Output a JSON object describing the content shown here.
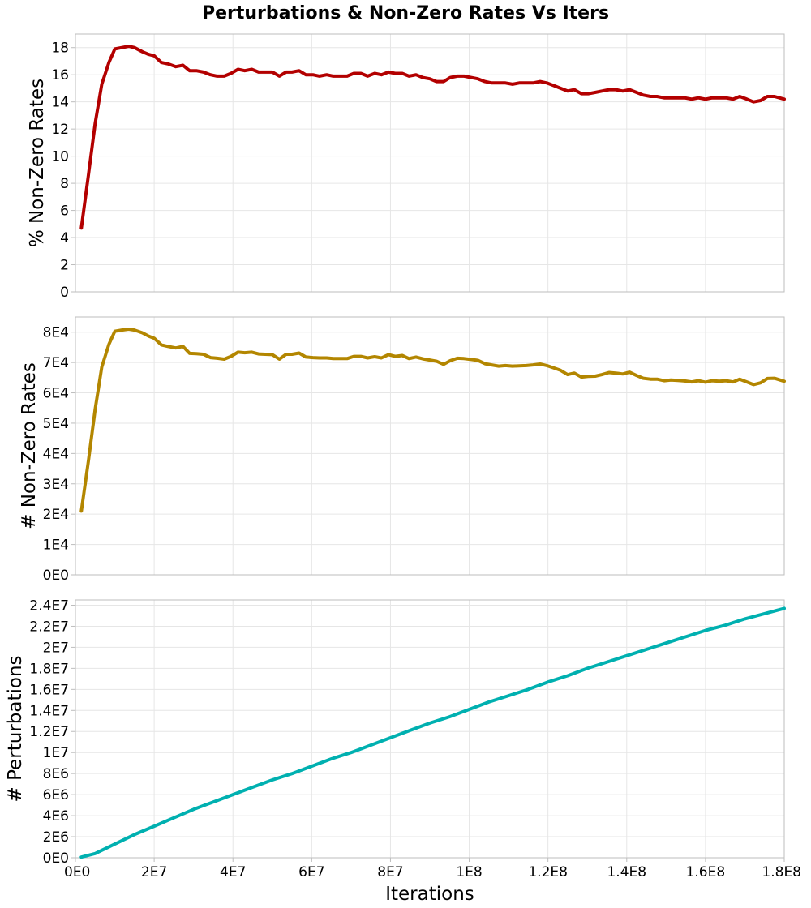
{
  "chart_data": [
    {
      "type": "line",
      "title": "Perturbations & Non-Zero Rates Vs Iters",
      "xlabel": "",
      "ylabel": "% Non-Zero Rates",
      "xlim": [
        0,
        180000000
      ],
      "ylim": [
        0,
        19
      ],
      "yticks": [
        0,
        2,
        4,
        6,
        8,
        10,
        12,
        14,
        16,
        18
      ],
      "ytick_labels": [
        "0",
        "2",
        "4",
        "6",
        "8",
        "10",
        "12",
        "14",
        "16",
        "18"
      ],
      "grid": true,
      "color": "#b30000",
      "series": [
        {
          "x": [
            1500000,
            3300000,
            5000000,
            6700000,
            8500000,
            10000000,
            11800000,
            13500000,
            15000000,
            17000000,
            18600000,
            20000000,
            21800000,
            23500000,
            25500000,
            27300000,
            29000000,
            30700000,
            32500000,
            34300000,
            36000000,
            37800000,
            39500000,
            41300000,
            43000000,
            44800000,
            46500000,
            48200000,
            50000000,
            51800000,
            53500000,
            55000000,
            56800000,
            58500000,
            60300000,
            62000000,
            63800000,
            65500000,
            67200000,
            69000000,
            70700000,
            72500000,
            74200000,
            76000000,
            77700000,
            79500000,
            81200000,
            83000000,
            84700000,
            86500000,
            88200000,
            90000000,
            91700000,
            93500000,
            95200000,
            97000000,
            98700000,
            100500000,
            102200000,
            104000000,
            105700000,
            107500000,
            109200000,
            111000000,
            112700000,
            114500000,
            116200000,
            118000000,
            119700000,
            121500000,
            123200000,
            125000000,
            126700000,
            128500000,
            130200000,
            132000000,
            133700000,
            135500000,
            137200000,
            139000000,
            140700000,
            142500000,
            144200000,
            146000000,
            147700000,
            149500000,
            151200000,
            153000000,
            154700000,
            156500000,
            158200000,
            160000000,
            161700000,
            163500000,
            165200000,
            167000000,
            168700000,
            170500000,
            172200000,
            174000000,
            175700000,
            177500000,
            180000000
          ],
          "y": [
            4.7,
            8.6,
            12.4,
            15.3,
            16.9,
            17.9,
            18.0,
            18.1,
            18.0,
            17.7,
            17.5,
            17.4,
            16.9,
            16.8,
            16.6,
            16.7,
            16.3,
            16.3,
            16.2,
            16.0,
            15.9,
            15.9,
            16.1,
            16.4,
            16.3,
            16.4,
            16.2,
            16.2,
            16.2,
            15.9,
            16.2,
            16.2,
            16.3,
            16.0,
            16.0,
            15.9,
            16.0,
            15.9,
            15.9,
            15.9,
            16.1,
            16.1,
            15.9,
            16.1,
            16.0,
            16.2,
            16.1,
            16.1,
            15.9,
            16.0,
            15.8,
            15.7,
            15.5,
            15.5,
            15.8,
            15.9,
            15.9,
            15.8,
            15.7,
            15.5,
            15.4,
            15.4,
            15.4,
            15.3,
            15.4,
            15.4,
            15.4,
            15.5,
            15.4,
            15.2,
            15.0,
            14.8,
            14.9,
            14.6,
            14.6,
            14.7,
            14.8,
            14.9,
            14.9,
            14.8,
            14.9,
            14.7,
            14.5,
            14.4,
            14.4,
            14.3,
            14.3,
            14.3,
            14.3,
            14.2,
            14.3,
            14.2,
            14.3,
            14.3,
            14.3,
            14.2,
            14.4,
            14.2,
            14.0,
            14.1,
            14.4,
            14.4,
            14.2
          ]
        }
      ]
    },
    {
      "type": "line",
      "xlabel": "",
      "ylabel": "# Non-Zero Rates",
      "xlim": [
        0,
        180000000
      ],
      "ylim": [
        0,
        85000
      ],
      "yticks": [
        0,
        10000,
        20000,
        30000,
        40000,
        50000,
        60000,
        70000,
        80000
      ],
      "ytick_labels": [
        "0E0",
        "1E4",
        "2E4",
        "3E4",
        "4E4",
        "5E4",
        "6E4",
        "7E4",
        "8E4"
      ],
      "grid": true,
      "color": "#b38600",
      "series": [
        {
          "x": [
            1500000,
            3300000,
            5000000,
            6700000,
            8500000,
            10000000,
            11800000,
            13500000,
            15000000,
            17000000,
            18600000,
            20000000,
            21800000,
            23500000,
            25500000,
            27300000,
            29000000,
            30700000,
            32500000,
            34300000,
            36000000,
            37800000,
            39500000,
            41300000,
            43000000,
            44800000,
            46500000,
            48200000,
            50000000,
            51800000,
            53500000,
            55000000,
            56800000,
            58500000,
            60300000,
            62000000,
            63800000,
            65500000,
            67200000,
            69000000,
            70700000,
            72500000,
            74200000,
            76000000,
            77700000,
            79500000,
            81200000,
            83000000,
            84700000,
            86500000,
            88200000,
            90000000,
            91700000,
            93500000,
            95200000,
            97000000,
            98700000,
            100500000,
            102200000,
            104000000,
            105700000,
            107500000,
            109200000,
            111000000,
            112700000,
            114500000,
            116200000,
            118000000,
            119700000,
            121500000,
            123200000,
            125000000,
            126700000,
            128500000,
            130200000,
            132000000,
            133700000,
            135500000,
            137200000,
            139000000,
            140700000,
            142500000,
            144200000,
            146000000,
            147700000,
            149500000,
            151200000,
            153000000,
            154700000,
            156500000,
            158200000,
            160000000,
            161700000,
            163500000,
            165200000,
            167000000,
            168700000,
            170500000,
            172200000,
            174000000,
            175700000,
            177500000,
            180000000
          ],
          "y": [
            21000,
            37500,
            54500,
            68500,
            76000,
            80300,
            80700,
            81000,
            80700,
            79800,
            78700,
            78000,
            75800,
            75300,
            74800,
            75300,
            73000,
            72900,
            72700,
            71600,
            71400,
            71100,
            72000,
            73400,
            73200,
            73400,
            72800,
            72700,
            72600,
            71100,
            72700,
            72700,
            73100,
            71800,
            71600,
            71500,
            71500,
            71300,
            71300,
            71300,
            72000,
            72000,
            71500,
            71900,
            71500,
            72600,
            72000,
            72300,
            71300,
            71800,
            71200,
            70800,
            70400,
            69400,
            70600,
            71400,
            71300,
            71000,
            70700,
            69600,
            69200,
            68800,
            69000,
            68800,
            68900,
            69000,
            69200,
            69500,
            69000,
            68200,
            67400,
            66000,
            66500,
            65200,
            65400,
            65500,
            66000,
            66700,
            66500,
            66200,
            66800,
            65700,
            64800,
            64500,
            64500,
            64000,
            64200,
            64100,
            63900,
            63600,
            64000,
            63500,
            64000,
            63800,
            64000,
            63600,
            64500,
            63600,
            62700,
            63300,
            64700,
            64800,
            63800
          ]
        }
      ]
    },
    {
      "type": "line",
      "xlabel": "Iterations",
      "ylabel": "# Perturbations",
      "xlim": [
        0,
        180000000
      ],
      "ylim": [
        0,
        24500000
      ],
      "xticks": [
        0,
        20000000,
        40000000,
        60000000,
        80000000,
        100000000,
        120000000,
        140000000,
        160000000,
        180000000
      ],
      "xtick_labels": [
        "0E0",
        "2E7",
        "4E7",
        "6E7",
        "8E7",
        "1E8",
        "1.2E8",
        "1.4E8",
        "1.6E8",
        "1.8E8"
      ],
      "yticks": [
        0,
        2000000,
        4000000,
        6000000,
        8000000,
        10000000,
        12000000,
        14000000,
        16000000,
        18000000,
        20000000,
        22000000,
        24000000
      ],
      "ytick_labels": [
        "0E0",
        "2E6",
        "4E6",
        "6E6",
        "8E6",
        "1E7",
        "1.2E7",
        "1.4E7",
        "1.6E7",
        "1.8E7",
        "2E7",
        "2.2E7",
        "2.4E7"
      ],
      "grid": true,
      "color": "#00b0b0",
      "series": [
        {
          "x": [
            1500000,
            5000000,
            10000000,
            15000000,
            20000000,
            25000000,
            30000000,
            35000000,
            40000000,
            45000000,
            50000000,
            55000000,
            60000000,
            65000000,
            70000000,
            75000000,
            80000000,
            85000000,
            90000000,
            95000000,
            100000000,
            105000000,
            110000000,
            115000000,
            120000000,
            125000000,
            130000000,
            135000000,
            140000000,
            145000000,
            150000000,
            155000000,
            160000000,
            165000000,
            170000000,
            175000000,
            180000000
          ],
          "y": [
            60000,
            400000,
            1300000,
            2200000,
            3000000,
            3800000,
            4600000,
            5300000,
            6000000,
            6700000,
            7400000,
            8000000,
            8700000,
            9400000,
            10000000,
            10700000,
            11400000,
            12100000,
            12800000,
            13400000,
            14100000,
            14800000,
            15400000,
            16000000,
            16700000,
            17300000,
            18000000,
            18600000,
            19200000,
            19800000,
            20400000,
            21000000,
            21600000,
            22100000,
            22700000,
            23200000,
            23700000
          ]
        }
      ]
    }
  ]
}
